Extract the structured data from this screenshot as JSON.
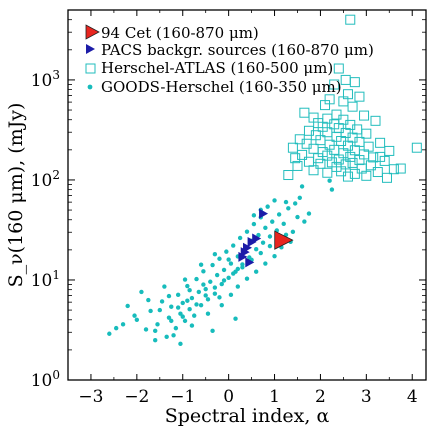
{
  "chart_data": {
    "type": "scatter",
    "xlabel": "Spectral index, α",
    "ylabel": "S_ν(160 μm), (mJy)",
    "xlim": [
      -3.5,
      4.3
    ],
    "ylim": [
      1,
      5000
    ],
    "yscale": "log",
    "grid": false,
    "legend_placement": "top-left",
    "x_ticks": [
      {
        "value": -3,
        "label": "−3"
      },
      {
        "value": -2,
        "label": "−2"
      },
      {
        "value": -1,
        "label": "−1"
      },
      {
        "value": 0,
        "label": "0"
      },
      {
        "value": 1,
        "label": "1"
      },
      {
        "value": 2,
        "label": "2"
      },
      {
        "value": 3,
        "label": "3"
      },
      {
        "value": 4,
        "label": "4"
      }
    ],
    "y_ticks": [
      {
        "value": 1,
        "base": "10",
        "exp": "0"
      },
      {
        "value": 10,
        "base": "10",
        "exp": "1"
      },
      {
        "value": 100,
        "base": "10",
        "exp": "2"
      },
      {
        "value": 1000,
        "base": "10",
        "exp": "3"
      }
    ],
    "series": [
      {
        "name": "94 Cet (160-870 μm)",
        "marker": "triangle-right-large",
        "color": "#e8251f",
        "edge": "#222222",
        "points": [
          {
            "x": 1.2,
            "y": 25
          }
        ]
      },
      {
        "name": "PACS backgr. sources (160-870 μm)",
        "marker": "triangle-right",
        "color": "#1c1ca8",
        "points": [
          {
            "x": 0.75,
            "y": 46
          },
          {
            "x": 0.6,
            "y": 26
          },
          {
            "x": 0.5,
            "y": 24
          },
          {
            "x": 0.4,
            "y": 21
          },
          {
            "x": 0.35,
            "y": 19
          },
          {
            "x": 0.3,
            "y": 17
          },
          {
            "x": 0.45,
            "y": 15
          }
        ]
      },
      {
        "name": "Herschel-ATLAS (160-500 μm)",
        "marker": "square-open",
        "color": "#22bdbd",
        "points": [
          {
            "x": 2.65,
            "y": 4000
          },
          {
            "x": 4.1,
            "y": 210
          },
          {
            "x": 2.4,
            "y": 1300
          },
          {
            "x": 2.55,
            "y": 1000
          },
          {
            "x": 2.75,
            "y": 950
          },
          {
            "x": 2.3,
            "y": 900
          },
          {
            "x": 2.6,
            "y": 720
          },
          {
            "x": 2.85,
            "y": 680
          },
          {
            "x": 2.2,
            "y": 640
          },
          {
            "x": 2.5,
            "y": 610
          },
          {
            "x": 2.1,
            "y": 560
          },
          {
            "x": 2.7,
            "y": 540
          },
          {
            "x": 1.65,
            "y": 470
          },
          {
            "x": 2.35,
            "y": 450
          },
          {
            "x": 2.95,
            "y": 440
          },
          {
            "x": 1.85,
            "y": 420
          },
          {
            "x": 2.15,
            "y": 410
          },
          {
            "x": 2.5,
            "y": 400
          },
          {
            "x": 3.2,
            "y": 390
          },
          {
            "x": 1.95,
            "y": 370
          },
          {
            "x": 2.3,
            "y": 360
          },
          {
            "x": 2.65,
            "y": 355
          },
          {
            "x": 2.05,
            "y": 340
          },
          {
            "x": 2.4,
            "y": 330
          },
          {
            "x": 2.8,
            "y": 320
          },
          {
            "x": 1.75,
            "y": 310
          },
          {
            "x": 2.15,
            "y": 300
          },
          {
            "x": 2.55,
            "y": 295
          },
          {
            "x": 3.0,
            "y": 290
          },
          {
            "x": 1.9,
            "y": 280
          },
          {
            "x": 2.35,
            "y": 270
          },
          {
            "x": 2.7,
            "y": 265
          },
          {
            "x": 1.55,
            "y": 255
          },
          {
            "x": 2.0,
            "y": 250
          },
          {
            "x": 2.45,
            "y": 245
          },
          {
            "x": 2.85,
            "y": 240
          },
          {
            "x": 3.3,
            "y": 235
          },
          {
            "x": 1.7,
            "y": 230
          },
          {
            "x": 2.2,
            "y": 225
          },
          {
            "x": 2.6,
            "y": 220
          },
          {
            "x": 3.05,
            "y": 215
          },
          {
            "x": 1.4,
            "y": 210
          },
          {
            "x": 1.85,
            "y": 205
          },
          {
            "x": 2.3,
            "y": 200
          },
          {
            "x": 2.75,
            "y": 198
          },
          {
            "x": 3.5,
            "y": 195
          },
          {
            "x": 2.05,
            "y": 190
          },
          {
            "x": 2.5,
            "y": 185
          },
          {
            "x": 2.95,
            "y": 180
          },
          {
            "x": 1.6,
            "y": 178
          },
          {
            "x": 2.15,
            "y": 175
          },
          {
            "x": 2.65,
            "y": 170
          },
          {
            "x": 3.15,
            "y": 168
          },
          {
            "x": 1.95,
            "y": 165
          },
          {
            "x": 2.4,
            "y": 160
          },
          {
            "x": 2.85,
            "y": 158
          },
          {
            "x": 3.4,
            "y": 155
          },
          {
            "x": 1.75,
            "y": 152
          },
          {
            "x": 2.25,
            "y": 150
          },
          {
            "x": 2.7,
            "y": 148
          },
          {
            "x": 2.0,
            "y": 145
          },
          {
            "x": 2.55,
            "y": 143
          },
          {
            "x": 3.1,
            "y": 140
          },
          {
            "x": 1.5,
            "y": 138
          },
          {
            "x": 2.35,
            "y": 135
          },
          {
            "x": 2.9,
            "y": 130
          },
          {
            "x": 3.6,
            "y": 128
          },
          {
            "x": 1.85,
            "y": 125
          },
          {
            "x": 2.45,
            "y": 122
          },
          {
            "x": 3.25,
            "y": 120
          },
          {
            "x": 2.15,
            "y": 118
          },
          {
            "x": 2.75,
            "y": 115
          },
          {
            "x": 1.3,
            "y": 112
          },
          {
            "x": 3.0,
            "y": 110
          },
          {
            "x": 2.6,
            "y": 108
          },
          {
            "x": 3.45,
            "y": 105
          },
          {
            "x": 3.75,
            "y": 130
          },
          {
            "x": 3.3,
            "y": 170
          },
          {
            "x": 1.45,
            "y": 165
          }
        ]
      },
      {
        "name": "GOODS-Herschel (160-350 μm)",
        "marker": "dot",
        "color": "#17bcbc",
        "points": [
          {
            "x": -2.3,
            "y": 3.6
          },
          {
            "x": -2.05,
            "y": 4.4
          },
          {
            "x": -1.8,
            "y": 3.2
          },
          {
            "x": -1.7,
            "y": 4.9
          },
          {
            "x": -1.55,
            "y": 3.6
          },
          {
            "x": -1.45,
            "y": 6.1
          },
          {
            "x": -1.35,
            "y": 2.7
          },
          {
            "x": -1.3,
            "y": 4.2
          },
          {
            "x": -1.25,
            "y": 5.4
          },
          {
            "x": -1.15,
            "y": 3.3
          },
          {
            "x": -1.1,
            "y": 7.1
          },
          {
            "x": -1.05,
            "y": 4.6
          },
          {
            "x": -1.0,
            "y": 5.9
          },
          {
            "x": -0.95,
            "y": 3.9
          },
          {
            "x": -0.9,
            "y": 8.7
          },
          {
            "x": -0.85,
            "y": 5.1
          },
          {
            "x": -0.8,
            "y": 6.6
          },
          {
            "x": -0.75,
            "y": 4.4
          },
          {
            "x": -0.7,
            "y": 10.2
          },
          {
            "x": -0.65,
            "y": 7.6
          },
          {
            "x": -0.6,
            "y": 5.6
          },
          {
            "x": -0.55,
            "y": 12.2
          },
          {
            "x": -0.5,
            "y": 8.1
          },
          {
            "x": -0.45,
            "y": 6.4
          },
          {
            "x": -0.4,
            "y": 9.6
          },
          {
            "x": -0.35,
            "y": 14.1
          },
          {
            "x": -0.3,
            "y": 7.3
          },
          {
            "x": -0.25,
            "y": 11.2
          },
          {
            "x": -0.2,
            "y": 16.3
          },
          {
            "x": -0.15,
            "y": 9.1
          },
          {
            "x": -0.1,
            "y": 12.6
          },
          {
            "x": -0.05,
            "y": 19.2
          },
          {
            "x": 0.0,
            "y": 10.5
          },
          {
            "x": 0.05,
            "y": 14.6
          },
          {
            "x": 0.1,
            "y": 22.1
          },
          {
            "x": 0.15,
            "y": 12.1
          },
          {
            "x": 0.2,
            "y": 17.2
          },
          {
            "x": 0.25,
            "y": 26.3
          },
          {
            "x": 0.3,
            "y": 14.3
          },
          {
            "x": 0.35,
            "y": 20.2
          },
          {
            "x": 0.4,
            "y": 30.4
          },
          {
            "x": 0.45,
            "y": 16.8
          },
          {
            "x": 0.5,
            "y": 24.6
          },
          {
            "x": 0.55,
            "y": 36.2
          },
          {
            "x": 0.6,
            "y": 20.3
          },
          {
            "x": 0.65,
            "y": 28.1
          },
          {
            "x": 0.7,
            "y": 42.3
          },
          {
            "x": 0.75,
            "y": 23.6
          },
          {
            "x": 0.8,
            "y": 33.2
          },
          {
            "x": 0.85,
            "y": 54.1
          },
          {
            "x": 0.9,
            "y": 27.2
          },
          {
            "x": 0.95,
            "y": 38.3
          },
          {
            "x": 1.0,
            "y": 62.4
          },
          {
            "x": 1.05,
            "y": 31.3
          },
          {
            "x": 1.1,
            "y": 45.2
          },
          {
            "x": 1.2,
            "y": 36.4
          },
          {
            "x": 1.3,
            "y": 52.1
          },
          {
            "x": 1.4,
            "y": 30.3
          },
          {
            "x": 1.5,
            "y": 42.6
          },
          {
            "x": 1.6,
            "y": 86.2
          },
          {
            "x": 1.55,
            "y": 66.3
          },
          {
            "x": 1.45,
            "y": 58.2
          },
          {
            "x": -2.6,
            "y": 2.9
          },
          {
            "x": -2.2,
            "y": 5.5
          },
          {
            "x": -1.9,
            "y": 7.6
          },
          {
            "x": -1.6,
            "y": 2.5
          },
          {
            "x": -1.4,
            "y": 8.6
          },
          {
            "x": -1.2,
            "y": 2.8
          },
          {
            "x": -0.95,
            "y": 10.1
          },
          {
            "x": -0.8,
            "y": 3.5
          },
          {
            "x": -0.6,
            "y": 14.2
          },
          {
            "x": -0.45,
            "y": 4.6
          },
          {
            "x": -0.3,
            "y": 18.1
          },
          {
            "x": -0.15,
            "y": 5.6
          },
          {
            "x": 0.05,
            "y": 7.1
          },
          {
            "x": 0.2,
            "y": 8.6
          },
          {
            "x": 0.4,
            "y": 10.3
          },
          {
            "x": 0.6,
            "y": 12.1
          },
          {
            "x": 0.8,
            "y": 14.6
          },
          {
            "x": 1.0,
            "y": 17.3
          },
          {
            "x": 1.15,
            "y": 21.2
          },
          {
            "x": 1.35,
            "y": 24.1
          },
          {
            "x": -1.75,
            "y": 6.3
          },
          {
            "x": -1.5,
            "y": 5.0
          },
          {
            "x": -1.3,
            "y": 6.9
          },
          {
            "x": -1.1,
            "y": 5.3
          },
          {
            "x": -0.9,
            "y": 6.2
          },
          {
            "x": -0.7,
            "y": 5.7
          },
          {
            "x": -0.5,
            "y": 7.0
          },
          {
            "x": -0.3,
            "y": 8.4
          },
          {
            "x": -0.1,
            "y": 9.9
          },
          {
            "x": 0.1,
            "y": 11.6
          },
          {
            "x": 0.3,
            "y": 13.4
          },
          {
            "x": 0.5,
            "y": 15.9
          },
          {
            "x": 0.7,
            "y": 18.6
          },
          {
            "x": 0.9,
            "y": 21.8
          },
          {
            "x": -2.0,
            "y": 4.0
          },
          {
            "x": -1.0,
            "y": 4.3
          },
          {
            "x": -0.2,
            "y": 6.7
          },
          {
            "x": 0.0,
            "y": 16.0
          },
          {
            "x": 0.2,
            "y": 12.9
          },
          {
            "x": -0.55,
            "y": 9.0
          },
          {
            "x": -1.6,
            "y": 3.1
          },
          {
            "x": -1.25,
            "y": 3.9
          },
          {
            "x": -0.85,
            "y": 7.9
          },
          {
            "x": 1.25,
            "y": 28.3
          },
          {
            "x": 1.65,
            "y": 38.4
          },
          {
            "x": 1.75,
            "y": 46.1
          },
          {
            "x": 2.25,
            "y": 80.2
          },
          {
            "x": 2.2,
            "y": 98.3
          },
          {
            "x": 0.55,
            "y": 44.3
          },
          {
            "x": 0.7,
            "y": 50.2
          },
          {
            "x": 1.25,
            "y": 60.1
          },
          {
            "x": -1.05,
            "y": 2.3
          },
          {
            "x": -0.35,
            "y": 3.1
          },
          {
            "x": 0.15,
            "y": 4.1
          },
          {
            "x": -2.45,
            "y": 3.3
          }
        ]
      }
    ]
  }
}
